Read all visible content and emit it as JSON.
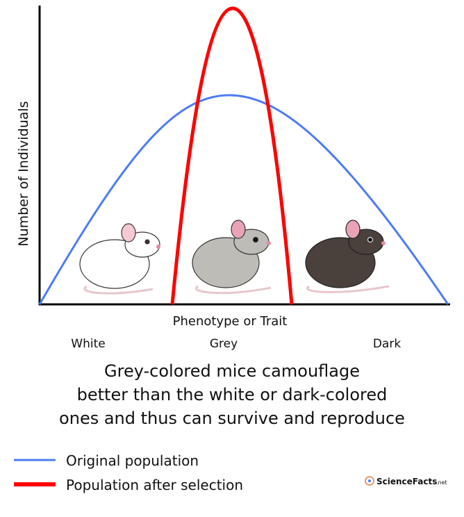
{
  "axes": {
    "y_label": "Number of Individuals",
    "x_label": "Phenotype or Trait"
  },
  "categories": [
    "White",
    "Grey",
    "Dark"
  ],
  "caption": [
    "Grey-colored mice camouflage",
    "better than the white or dark-colored",
    "ones and thus can survive and reproduce"
  ],
  "legend": [
    "Original population",
    "Population after selection"
  ],
  "logo": {
    "name": "ScienceFacts",
    "suffix": ".net"
  }
}
